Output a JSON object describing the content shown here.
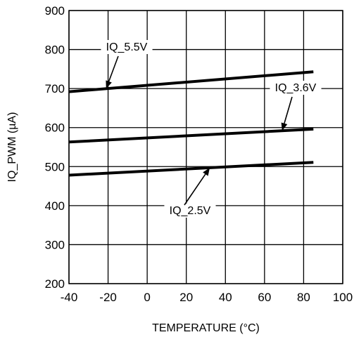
{
  "chart_data": {
    "type": "line",
    "xlabel": "TEMPERATURE (°C)",
    "ylabel": "IQ_PWM (µA)",
    "xlim": [
      -40,
      100
    ],
    "ylim": [
      200,
      900
    ],
    "x_ticks": [
      -40,
      -20,
      0,
      20,
      40,
      60,
      80,
      100
    ],
    "y_ticks": [
      200,
      300,
      400,
      500,
      600,
      700,
      800,
      900
    ],
    "grid": true,
    "series": [
      {
        "name": "IQ_5.5V",
        "x": [
          -40,
          85
        ],
        "y": [
          692,
          743
        ],
        "color": "#000000"
      },
      {
        "name": "IQ_3.6V",
        "x": [
          -40,
          85
        ],
        "y": [
          563,
          596
        ],
        "color": "#000000"
      },
      {
        "name": "IQ_2.5V",
        "x": [
          -40,
          85
        ],
        "y": [
          478,
          511
        ],
        "color": "#000000"
      }
    ],
    "annotations": [
      {
        "text": "IQ_5.5V",
        "series": 0
      },
      {
        "text": "IQ_3.6V",
        "series": 1
      },
      {
        "text": "IQ_2.5V",
        "series": 2
      }
    ]
  }
}
